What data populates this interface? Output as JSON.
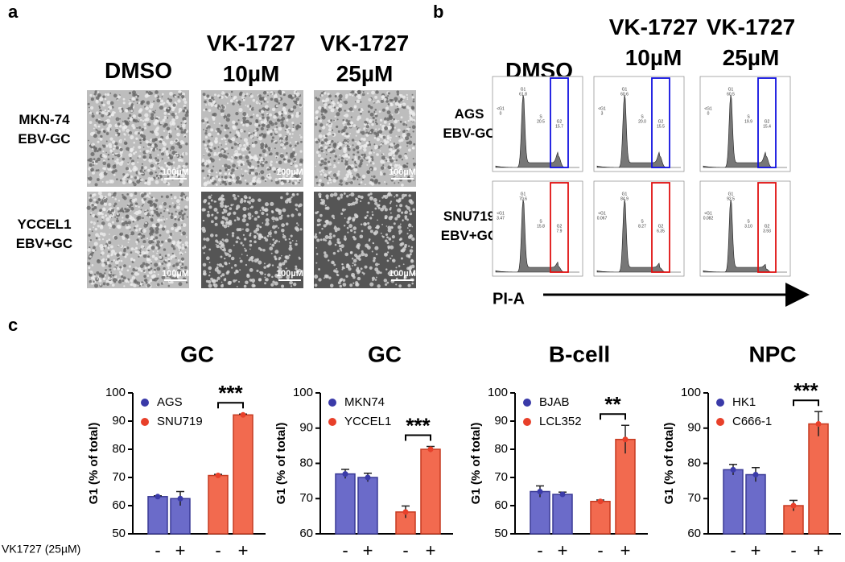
{
  "panels": {
    "a": {
      "label": "a",
      "columns": [
        "DMSO",
        "VK-1727\n10µM",
        "VK-1727\n25µM"
      ],
      "rows": [
        "MKN-74\nEBV-GC",
        "YCCEL1\nEBV+GC"
      ],
      "scale_bar": "100µM"
    },
    "b": {
      "label": "b",
      "columns": [
        "DMSO",
        "VK-1727\n10µM",
        "VK-1727\n25µM"
      ],
      "rows": [
        "AGS\nEBV-GC",
        "SNU719\nEBV+GC"
      ],
      "axis_label": "PI-A",
      "gates": [
        [
          [
            [
              "<G1",
              "0"
            ],
            [
              "G1",
              "61.8"
            ],
            [
              "S",
              "20.5"
            ],
            [
              "G2",
              "15.7"
            ]
          ],
          [
            [
              "<G1",
              "3"
            ],
            [
              "G1",
              "60.6"
            ],
            [
              "S",
              "20.0"
            ],
            [
              "G2",
              "15.5"
            ]
          ],
          [
            [
              "<G1",
              "0"
            ],
            [
              "G1",
              "60.5"
            ],
            [
              "S",
              "19.9"
            ],
            [
              "G2",
              "15.4"
            ]
          ]
        ],
        [
          [
            [
              "<G1",
              "3.47"
            ],
            [
              "G1",
              "70.6"
            ],
            [
              "S",
              "15.8"
            ],
            [
              "G2",
              "7.9"
            ]
          ],
          [
            [
              "<G1",
              "0.067"
            ],
            [
              "G1",
              "84.9"
            ],
            [
              "S",
              "8.27"
            ],
            [
              "G2",
              "6.35"
            ]
          ],
          [
            [
              "<G1",
              "0.082"
            ],
            [
              "G1",
              "92.5"
            ],
            [
              "S",
              "3.10"
            ],
            [
              "G2",
              "3.93"
            ]
          ]
        ]
      ]
    },
    "c": {
      "label": "c",
      "treatment_label": "VK1727 (25µM)"
    }
  },
  "chart_data": [
    {
      "type": "bar",
      "title": "GC",
      "y_label": "G1 (% of total)",
      "categories": [
        "-",
        "+",
        "-",
        "+"
      ],
      "ylim": [
        50,
        100
      ],
      "yticks": [
        50,
        60,
        70,
        80,
        90,
        100
      ],
      "significance": "***",
      "series": [
        {
          "name": "AGS",
          "color": "#6b6bc9",
          "values": [
            63.2,
            62.5,
            null,
            null
          ],
          "errors": [
            0.3,
            2.5,
            null,
            null
          ]
        },
        {
          "name": "SNU719",
          "color": "#f26a4f",
          "values": [
            null,
            null,
            70.7,
            92.2
          ],
          "errors": [
            null,
            null,
            0.4,
            0.3
          ]
        }
      ]
    },
    {
      "type": "bar",
      "title": "GC",
      "y_label": "G1 (% of total)",
      "categories": [
        "-",
        "+",
        "-",
        "+"
      ],
      "ylim": [
        60,
        100
      ],
      "yticks": [
        60,
        70,
        80,
        90,
        100
      ],
      "significance": "***",
      "series": [
        {
          "name": "MKN74",
          "color": "#6b6bc9",
          "values": [
            77,
            76,
            null,
            null
          ],
          "errors": [
            1.3,
            1.2,
            null,
            null
          ]
        },
        {
          "name": "YCCEL1",
          "color": "#f26a4f",
          "values": [
            null,
            null,
            66.2,
            84
          ],
          "errors": [
            null,
            null,
            1.7,
            0.8
          ]
        }
      ]
    },
    {
      "type": "bar",
      "title": "B-cell",
      "y_label": "G1 (% of total)",
      "categories": [
        "-",
        "+",
        "-",
        "+"
      ],
      "ylim": [
        50,
        100
      ],
      "yticks": [
        50,
        60,
        70,
        80,
        90,
        100
      ],
      "significance": "**",
      "series": [
        {
          "name": "BJAB",
          "color": "#6b6bc9",
          "values": [
            65,
            64,
            null,
            null
          ],
          "errors": [
            2,
            0.8,
            null,
            null
          ]
        },
        {
          "name": "LCL352",
          "color": "#f26a4f",
          "values": [
            null,
            null,
            61.5,
            83.5
          ],
          "errors": [
            null,
            null,
            0.5,
            5
          ]
        }
      ]
    },
    {
      "type": "bar",
      "title": "NPC",
      "y_label": "G1 (% of total)",
      "categories": [
        "-",
        "+",
        "-",
        "+"
      ],
      "ylim": [
        60,
        100
      ],
      "yticks": [
        60,
        70,
        80,
        90,
        100
      ],
      "significance": "***",
      "series": [
        {
          "name": "HK1",
          "color": "#6b6bc9",
          "values": [
            78.2,
            76.8,
            null,
            null
          ],
          "errors": [
            1.5,
            2,
            null,
            null
          ]
        },
        {
          "name": "C666-1",
          "color": "#f26a4f",
          "values": [
            null,
            null,
            68,
            91.2
          ],
          "errors": [
            null,
            null,
            1.5,
            3.5
          ]
        }
      ]
    }
  ]
}
